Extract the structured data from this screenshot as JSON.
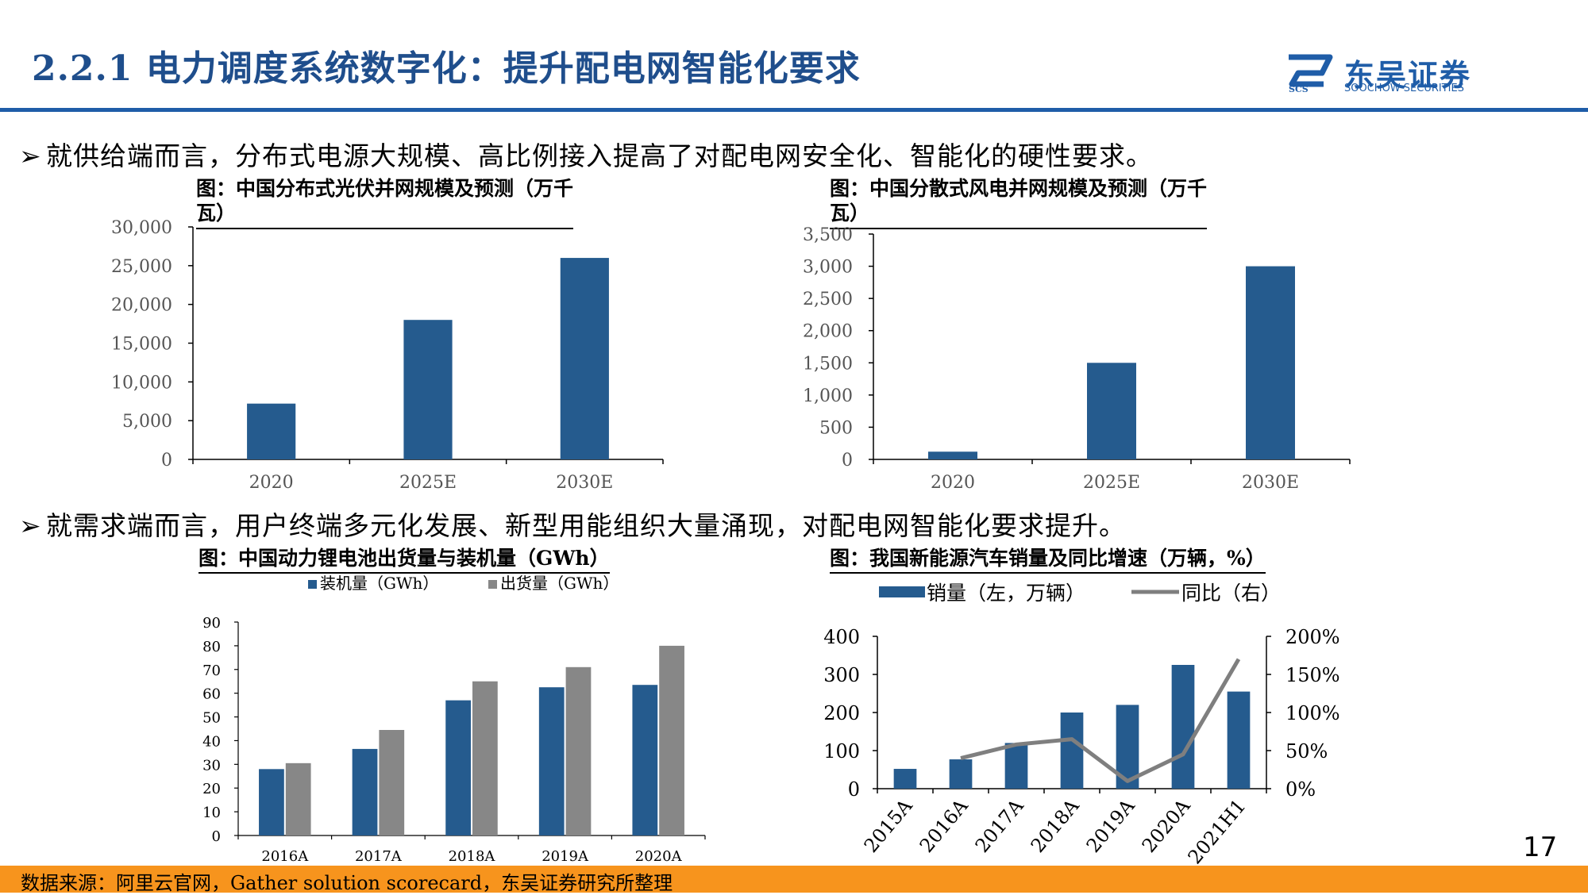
{
  "header": {
    "title": "2.2.1 电力调度系统数字化：提升配电网智能化要求",
    "logo_cn": "东吴证券",
    "logo_en": "SOOCHOW SECURITIES",
    "logo_mark_text": "SCS",
    "brand_color": "#1f5da8"
  },
  "bullets": [
    {
      "arrow": "➢",
      "text": "就供给端而言，分布式电源大规模、高比例接入提高了对配电网安全化、智能化的硬性要求。"
    },
    {
      "arrow": "➢",
      "text": "就需求端而言，用户终端多元化发展、新型用能组织大量涌现，对配电网智能化要求提升。"
    }
  ],
  "chart_titles": {
    "c1": [
      "图：中国分布式光伏并网规模及预测（万千",
      "瓦）"
    ],
    "c2": [
      "图：中国分散式风电并网规模及预测（万千",
      "瓦）"
    ],
    "c3": "图：中国动力锂电池出货量与装机量（GWh）",
    "c4": "图：我国新能源汽车销量及同比增速（万辆，%）"
  },
  "chart_data": [
    {
      "type": "bar",
      "categories": [
        "2020",
        "2025E",
        "2030E"
      ],
      "values": [
        7200,
        18000,
        26000
      ],
      "ylim": [
        0,
        30000
      ],
      "yticks": [
        "0",
        "5,000",
        "10,000",
        "15,000",
        "20,000",
        "25,000",
        "30,000"
      ],
      "color": "#255b8e"
    },
    {
      "type": "bar",
      "categories": [
        "2020",
        "2025E",
        "2030E"
      ],
      "values": [
        120,
        1500,
        3000
      ],
      "ylim": [
        0,
        3500
      ],
      "yticks": [
        "0",
        "500",
        "1,000",
        "1,500",
        "2,000",
        "2,500",
        "3,000",
        "3,500"
      ],
      "color": "#255b8e"
    },
    {
      "type": "bar",
      "categories": [
        "2016A",
        "2017A",
        "2018A",
        "2019A",
        "2020A"
      ],
      "series": [
        {
          "name": "装机量（GWh）",
          "values": [
            28,
            36.5,
            57,
            62.5,
            63.5
          ],
          "color": "#255b8e"
        },
        {
          "name": "出货量（GWh）",
          "values": [
            30.5,
            44.5,
            65,
            71,
            80
          ],
          "color": "#878787"
        }
      ],
      "ylim": [
        0,
        90
      ],
      "yticks": [
        "0",
        "10",
        "20",
        "30",
        "40",
        "50",
        "60",
        "70",
        "80",
        "90"
      ],
      "legend": "top"
    },
    {
      "type": "bar+line",
      "categories": [
        "2015A",
        "2016A",
        "2017A",
        "2018A",
        "2019A",
        "2020A",
        "2021H1"
      ],
      "series": [
        {
          "name": "销量（左，万辆）",
          "type": "bar",
          "axis": "left",
          "values": [
            52,
            77,
            120,
            200,
            220,
            325,
            255
          ],
          "color": "#255b8e"
        },
        {
          "name": "同比（右）",
          "type": "line",
          "axis": "right",
          "values": [
            null,
            40,
            58,
            65,
            10,
            45,
            170
          ],
          "color": "#7f7f7f"
        }
      ],
      "ylim_left": [
        0,
        400
      ],
      "yticks_left": [
        "0",
        "100",
        "200",
        "300",
        "400"
      ],
      "ylim_right": [
        0,
        200
      ],
      "yticks_right": [
        "0%",
        "50%",
        "100%",
        "150%",
        "200%"
      ],
      "legend": "top"
    }
  ],
  "footer": {
    "source": "数据来源：阿里云官网，Gather solution scorecard，东吴证券研究所整理",
    "page_number": "17",
    "bar_color": "#f7941d"
  }
}
